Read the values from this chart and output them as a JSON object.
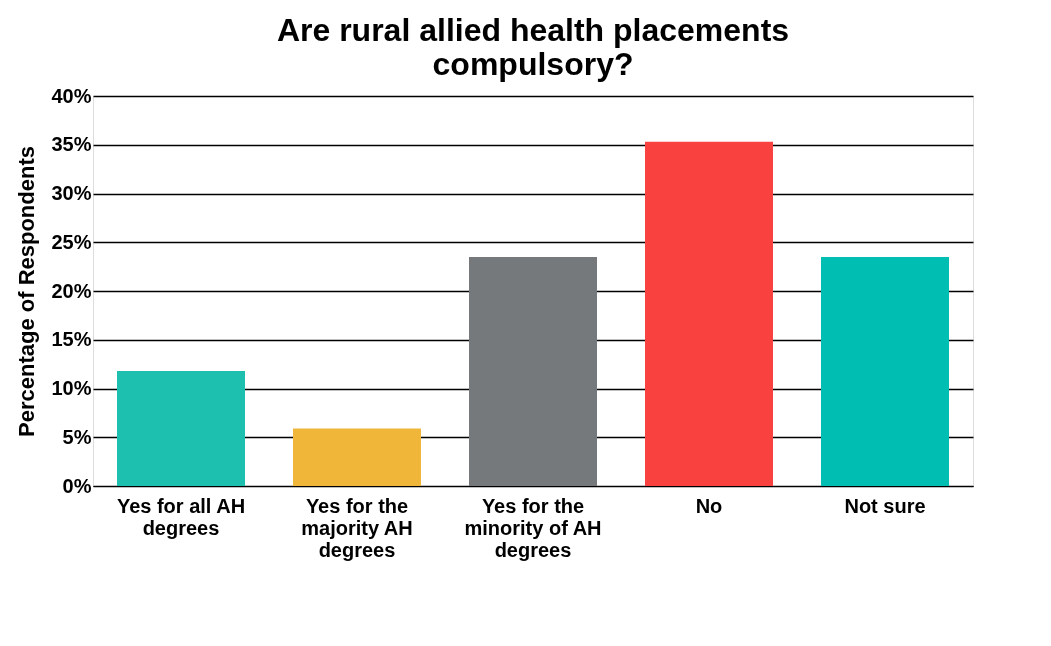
{
  "chart_data": {
    "type": "bar",
    "title": "Are rural allied health placements compulsory?",
    "ylabel": "Percentage of Respondents",
    "categories": [
      "Yes for all AH degrees",
      "Yes for the majority AH degrees",
      "Yes for the minority of AH degrees",
      "No",
      "Not sure"
    ],
    "values": [
      11.8,
      5.9,
      23.5,
      35.3,
      23.5
    ],
    "colors": [
      "#1dbfaf",
      "#f0b63a",
      "#76797c",
      "#f9423f",
      "#00bfb2"
    ],
    "ylim": [
      0,
      40
    ],
    "yticks": [
      {
        "value": 0,
        "label": "0%"
      },
      {
        "value": 5,
        "label": "5%"
      },
      {
        "value": 10,
        "label": "10%"
      },
      {
        "value": 15,
        "label": "15%"
      },
      {
        "value": 20,
        "label": "20%"
      },
      {
        "value": 25,
        "label": "25%"
      },
      {
        "value": 30,
        "label": "30%"
      },
      {
        "value": 35,
        "label": "35%"
      },
      {
        "value": 40,
        "label": "40%"
      }
    ],
    "grid": "y"
  }
}
